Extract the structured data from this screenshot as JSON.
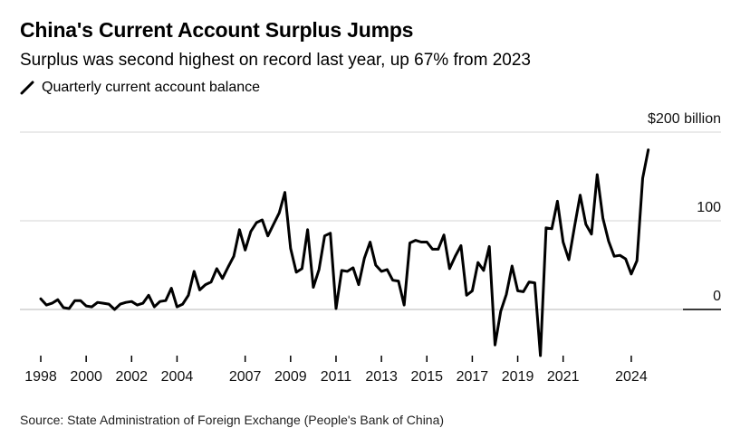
{
  "chart_data": {
    "type": "line",
    "title": "China's Current Account Surplus Jumps",
    "subtitle": "Surplus was second highest on record last year, up 67% from 2023",
    "legend": [
      {
        "name": "Quarterly current account balance",
        "color": "#000000"
      }
    ],
    "y_unit_label": "$200 billion",
    "y_ticks": [
      {
        "value": 0,
        "label": "0"
      },
      {
        "value": 100,
        "label": "100"
      },
      {
        "value": 200,
        "label": "$200 billion"
      }
    ],
    "ylim": [
      -60,
      200
    ],
    "x_ticks": [
      {
        "value": 1998,
        "label": "1998"
      },
      {
        "value": 2000,
        "label": "2000"
      },
      {
        "value": 2002,
        "label": "2002"
      },
      {
        "value": 2004,
        "label": "2004"
      },
      {
        "value": 2007,
        "label": "2007"
      },
      {
        "value": 2009,
        "label": "2009"
      },
      {
        "value": 2011,
        "label": "2011"
      },
      {
        "value": 2013,
        "label": "2013"
      },
      {
        "value": 2015,
        "label": "2015"
      },
      {
        "value": 2017,
        "label": "2017"
      },
      {
        "value": 2019,
        "label": "2019"
      },
      {
        "value": 2021,
        "label": "2021"
      },
      {
        "value": 2024,
        "label": "2024"
      }
    ],
    "xlim": [
      1998,
      2025
    ],
    "series": [
      {
        "name": "Quarterly current account balance",
        "color": "#000000",
        "x_start": 1998.0,
        "x_step": 0.25,
        "values": [
          12,
          5,
          7,
          11,
          2,
          1,
          10,
          10,
          4,
          3,
          8,
          7,
          6,
          0,
          6,
          8,
          9,
          5,
          7,
          16,
          3,
          9,
          10,
          24,
          3,
          6,
          16,
          43,
          22,
          28,
          31,
          46,
          35,
          48,
          60,
          90,
          67,
          88,
          98,
          101,
          83,
          96,
          109,
          132,
          69,
          42,
          46,
          90,
          25,
          45,
          83,
          86,
          1,
          44,
          43,
          47,
          28,
          58,
          76,
          50,
          43,
          45,
          33,
          32,
          5,
          75,
          78,
          76,
          76,
          68,
          68,
          84,
          46,
          60,
          72,
          16,
          21,
          53,
          44,
          71,
          -40,
          -2,
          17,
          49,
          21,
          20,
          31,
          30,
          -52,
          92,
          91,
          122,
          76,
          56,
          93,
          129,
          96,
          85,
          152,
          103,
          77,
          60,
          61,
          57,
          40,
          55,
          148,
          180
        ]
      }
    ],
    "grid": true,
    "source": "Source: State Administration of Foreign Exchange (People's Bank of China)"
  }
}
